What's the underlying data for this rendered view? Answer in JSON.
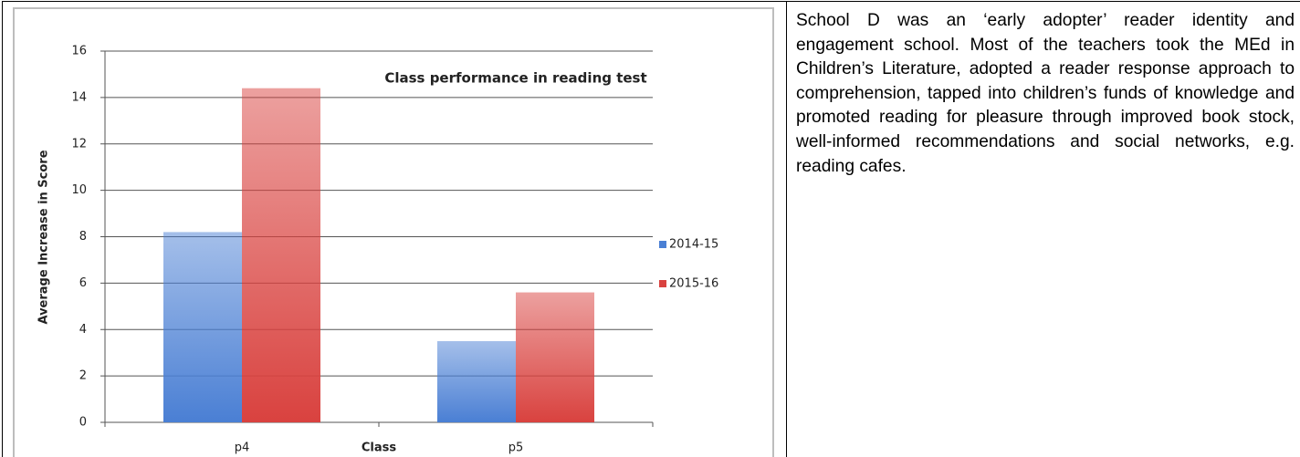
{
  "chart_data": {
    "type": "bar",
    "title": "Class performance in reading test",
    "x_label": "Class",
    "y_label": "Average Increase in Score",
    "categories": [
      "p4",
      "p5"
    ],
    "series": [
      {
        "name": "2014-15",
        "color": "#4a7fd4",
        "values": [
          8.2,
          3.5
        ]
      },
      {
        "name": "2015-16",
        "color": "#d9423f",
        "values": [
          14.4,
          5.6
        ]
      }
    ],
    "ylim": [
      0,
      16
    ],
    "yticks": [
      0,
      2,
      4,
      6,
      8,
      10,
      12,
      14,
      16
    ],
    "grid": true,
    "legend": "right"
  },
  "paragraph": "School D was an ‘early adopter’ reader identity and engagement school. Most of the teachers took the MEd in Children’s Literature, adopted a reader response approach to comprehension, tapped into children’s funds of knowledge and promoted reading for pleasure through improved book stock, well-informed recommendations and social networks, e.g. reading cafes."
}
